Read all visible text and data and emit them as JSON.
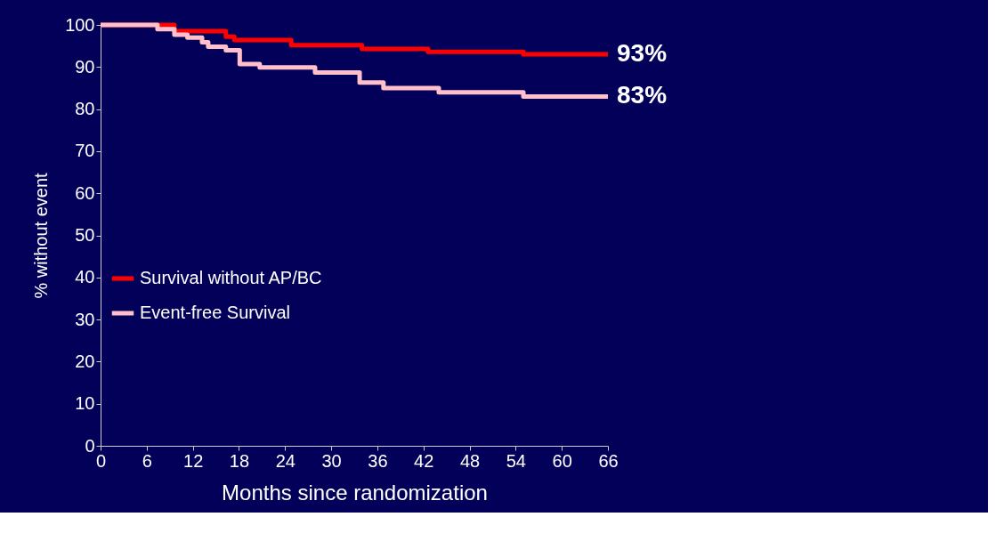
{
  "chart_data": {
    "type": "step",
    "xlabel": "Months since randomization",
    "ylabel": "% without event",
    "xlim": [
      0,
      66
    ],
    "xticks": [
      0,
      6,
      12,
      18,
      24,
      30,
      36,
      42,
      48,
      54,
      60,
      66
    ],
    "ylim": [
      0,
      100
    ],
    "yticks": [
      0,
      10,
      20,
      30,
      40,
      50,
      60,
      70,
      80,
      90,
      100
    ],
    "grid": false,
    "legend": "left",
    "line_style": "solid",
    "marker": "none",
    "series": [
      {
        "name": "Survival without AP/BC",
        "color": "#ff0000",
        "x": [
          0,
          9.6,
          16.3,
          17.4,
          24.8,
          34,
          42.6,
          55,
          66
        ],
        "values": [
          100,
          98.5,
          97.2,
          96.4,
          95.2,
          94.3,
          93.6,
          93,
          93
        ]
      },
      {
        "name": "Event-free Survival",
        "color": "#ffc0cb",
        "x": [
          0,
          7.4,
          9.6,
          11.3,
          13.2,
          14,
          16.3,
          18.1,
          20.7,
          27.9,
          33.7,
          36.8,
          44,
          55,
          66
        ],
        "values": [
          100,
          99,
          97.7,
          97,
          95.9,
          94.8,
          94,
          90.7,
          89.9,
          88.7,
          86.3,
          85,
          84,
          83,
          83
        ]
      }
    ],
    "annotations": [
      {
        "text": "93%",
        "x": 66,
        "y": 93
      },
      {
        "text": "83%",
        "x": 66,
        "y": 83
      }
    ]
  }
}
